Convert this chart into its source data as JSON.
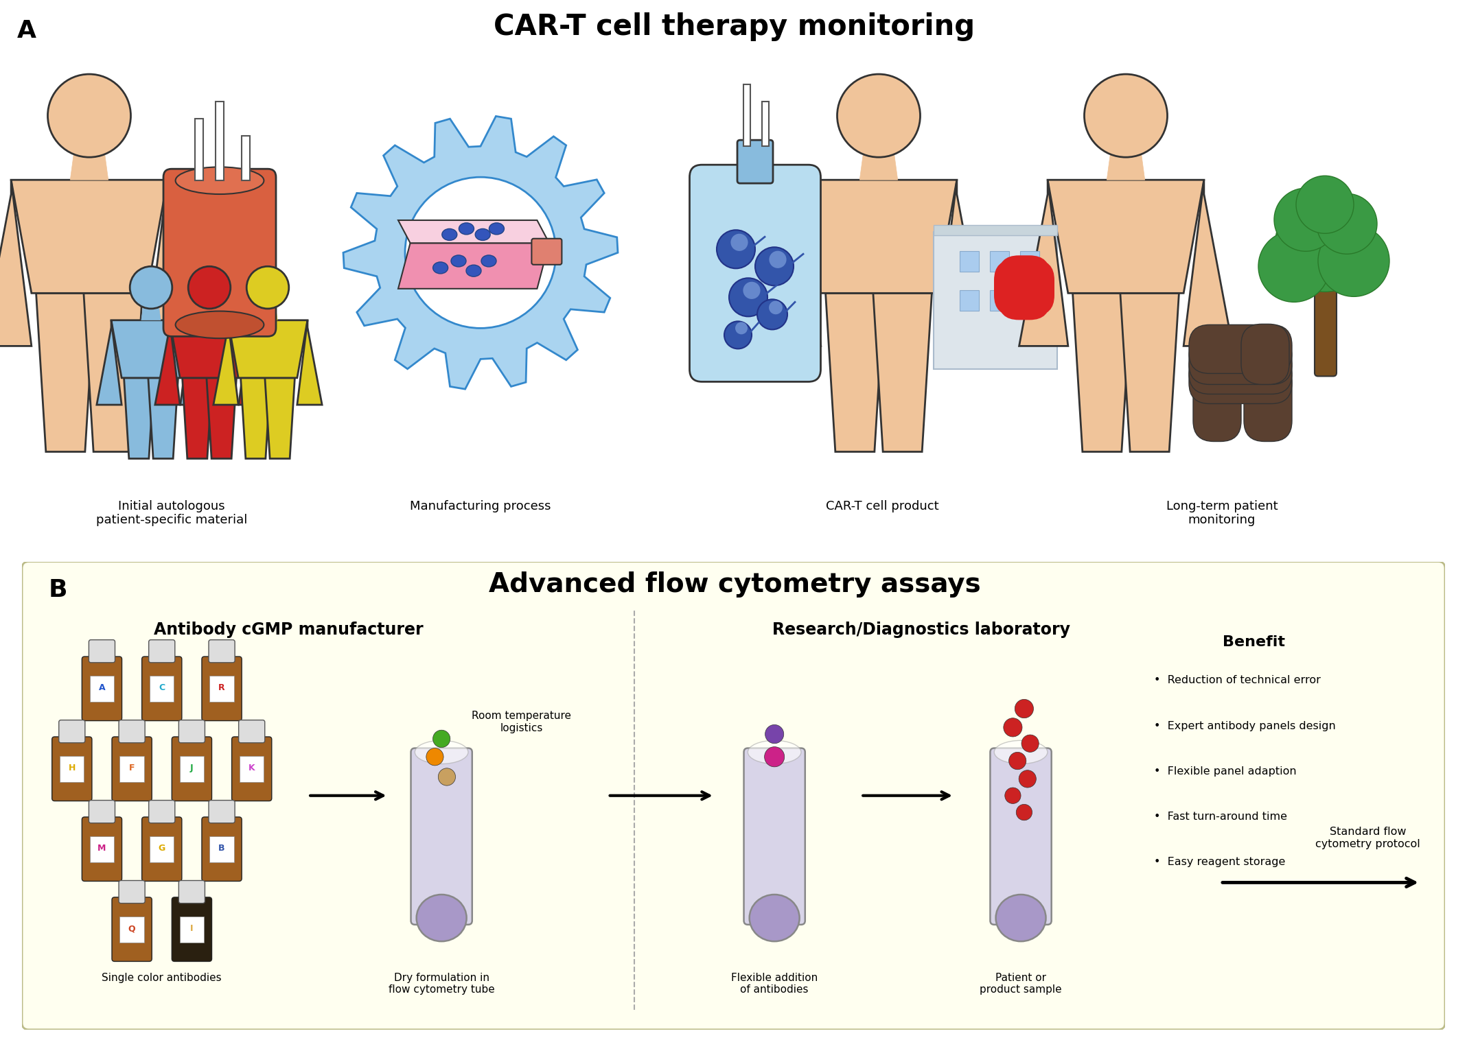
{
  "title_A": "CAR-T cell therapy monitoring",
  "label_A": "A",
  "label_B": "B",
  "panel_A_labels": [
    "Initial autologous\npatient-specific material",
    "Manufacturing process",
    "CAR-T cell product",
    "Long-term patient\nmonitoring"
  ],
  "panel_B_title": "Advanced flow cytometry assays",
  "panel_B_left_title": "Antibody cGMP manufacturer",
  "panel_B_right_title": "Research/Diagnostics laboratory",
  "panel_B_benefit_title": "Benefit",
  "panel_B_benefits": [
    "Reduction of technical error",
    "Expert antibody panels design",
    "Flexible panel adaption",
    "Fast turn-around time",
    "Easy reagent storage"
  ],
  "panel_B_bottom_labels": [
    "Single color antibodies",
    "Dry formulation in\nflow cytometry tube",
    "Flexible addition\nof antibodies",
    "Patient or\nproduct sample"
  ],
  "panel_B_logistics_label": "Room temperature\nlogistics",
  "panel_B_protocol_label": "Standard flow\ncytometry protocol",
  "skin_color": "#f0c49a",
  "skin_outline": "#333333",
  "gear_color": "#aad4f0",
  "gear_outline": "#3388cc",
  "bioreactor_color": "#d96040",
  "bioreactor_outline": "#333333",
  "flask_blue": "#88bbdd",
  "hospital_wall": "#dde5eb",
  "hospital_win": "#88bbdd",
  "tree_green": "#3a9a44",
  "tree_trunk": "#7a5020",
  "bench_color": "#5a4030",
  "bottle_brown": "#a06020",
  "bottle_dark": "#2a2010",
  "tube_body": "#d8d4e8",
  "tube_bottom": "#a898c8",
  "red_drop": "#cc2222",
  "pink_magenta": "#cc2288",
  "green_dot": "#44aa22",
  "orange_dot": "#ee8800",
  "tan_dot": "#c8a060",
  "purple_dot": "#7744aa",
  "bg_yellow": "#fffff0",
  "antibody_letters": [
    "A",
    "C",
    "R",
    "H",
    "F",
    "J",
    "K",
    "M",
    "G",
    "B",
    "Q",
    "I"
  ],
  "antibody_bg": [
    "#a06020",
    "#a06020",
    "#a06020",
    "#a06020",
    "#a06020",
    "#a06020",
    "#a06020",
    "#a06020",
    "#a06020",
    "#a06020",
    "#a06020",
    "#2a2010"
  ],
  "antibody_label_colors": [
    "#2255cc",
    "#22aacc",
    "#cc2222",
    "#ddaa00",
    "#dd6622",
    "#22aa44",
    "#cc44cc",
    "#cc2288",
    "#ddaa00",
    "#3355aa",
    "#cc4422",
    "#ddaa44"
  ]
}
